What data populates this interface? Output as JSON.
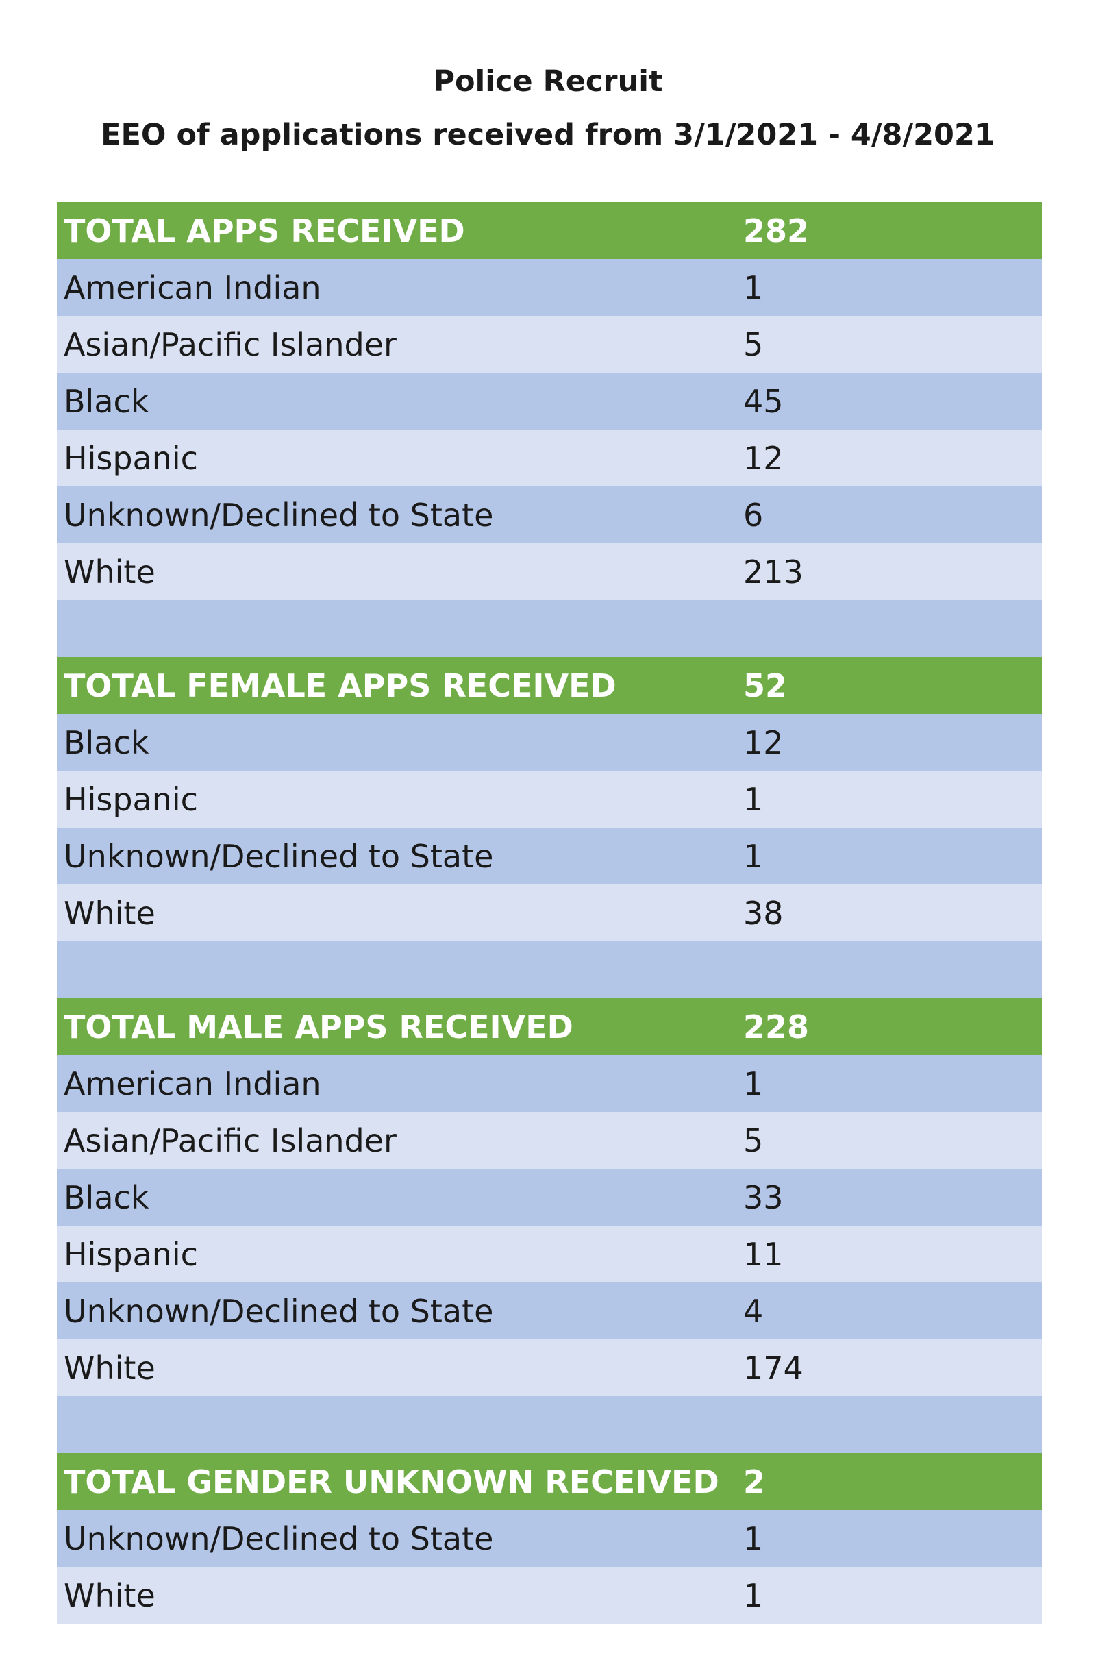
{
  "title_line1": "Police Recruit",
  "title_line2": "EEO of applications received from 3/1/2021 - 4/8/2021",
  "sections": [
    {
      "total_label": "TOTAL APPS RECEIVED",
      "total_value": "282",
      "rows": [
        {
          "label": "American Indian",
          "value": "1"
        },
        {
          "label": "Asian/Pacific Islander",
          "value": "5"
        },
        {
          "label": "Black",
          "value": "45"
        },
        {
          "label": "Hispanic",
          "value": "12"
        },
        {
          "label": "Unknown/Declined to State",
          "value": "6"
        },
        {
          "label": "White",
          "value": "213"
        }
      ]
    },
    {
      "total_label": "TOTAL FEMALE APPS RECEIVED",
      "total_value": "52",
      "rows": [
        {
          "label": "Black",
          "value": "12"
        },
        {
          "label": "Hispanic",
          "value": "1"
        },
        {
          "label": "Unknown/Declined to State",
          "value": "1"
        },
        {
          "label": "White",
          "value": "38"
        }
      ]
    },
    {
      "total_label": "TOTAL MALE APPS RECEIVED",
      "total_value": "228",
      "rows": [
        {
          "label": "American Indian",
          "value": "1"
        },
        {
          "label": "Asian/Pacific Islander",
          "value": "5"
        },
        {
          "label": "Black",
          "value": "33"
        },
        {
          "label": "Hispanic",
          "value": "11"
        },
        {
          "label": "Unknown/Declined to State",
          "value": "4"
        },
        {
          "label": "White",
          "value": "174"
        }
      ]
    },
    {
      "total_label": "TOTAL GENDER UNKNOWN RECEIVED",
      "total_value": "2",
      "rows": [
        {
          "label": "Unknown/Declined to State",
          "value": "1"
        },
        {
          "label": "White",
          "value": "1"
        }
      ]
    }
  ],
  "colors": {
    "total_row": "#70ad47",
    "row_dark": "#b4c6e7",
    "row_light": "#d9e1f2"
  }
}
